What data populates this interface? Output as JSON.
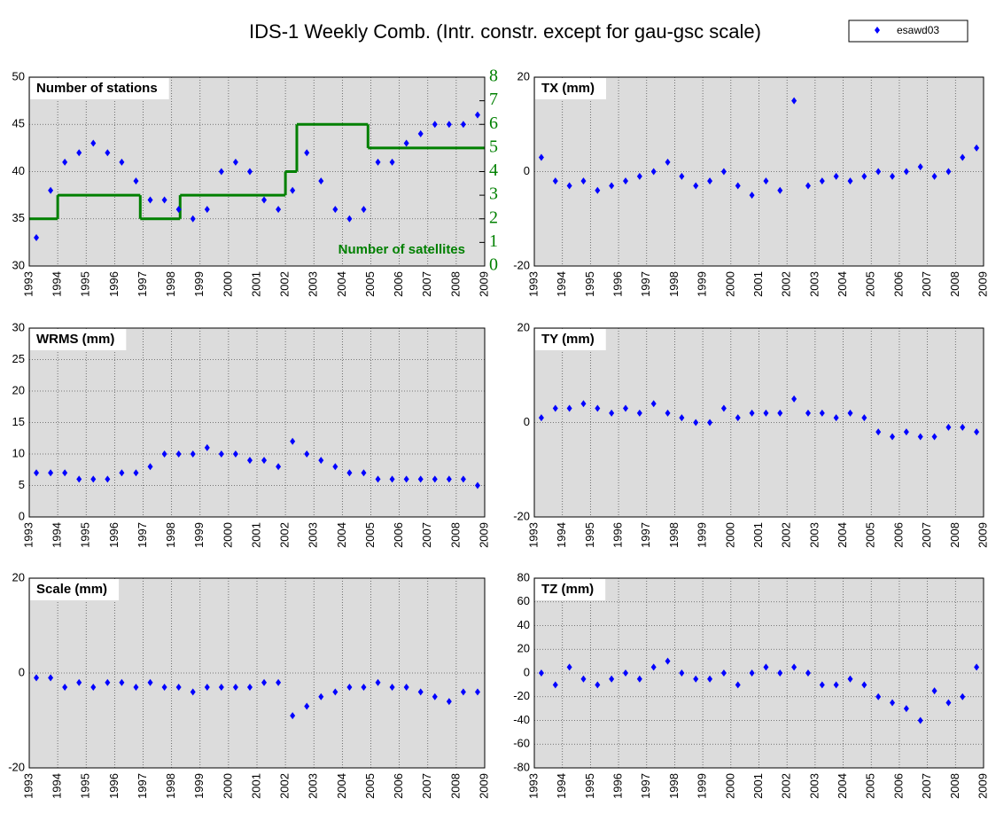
{
  "title": "IDS-1 Weekly Comb. (Intr. constr. except for gau-gsc scale)",
  "chart_data": [
    {
      "type": "scatter",
      "label": "Number of stations",
      "xlim": [
        1993,
        2009
      ],
      "xticks": [
        1993,
        1994,
        1995,
        1996,
        1997,
        1998,
        1999,
        2000,
        2001,
        2002,
        2003,
        2004,
        2005,
        2006,
        2007,
        2008,
        2009
      ],
      "ylim": [
        30,
        50
      ],
      "yticks": [
        30,
        35,
        40,
        45,
        50
      ],
      "y2lim": [
        0,
        8
      ],
      "y2ticks": [
        0,
        1,
        2,
        3,
        4,
        5,
        6,
        7,
        8
      ],
      "grid": true,
      "series": [
        {
          "name": "esawd03",
          "color": "#0000ff",
          "x": [
            1993.25,
            1993.75,
            1994.25,
            1994.75,
            1995.25,
            1995.75,
            1996.25,
            1996.75,
            1997.25,
            1997.75,
            1998.25,
            1998.75,
            1999.25,
            1999.75,
            2000.25,
            2000.75,
            2001.25,
            2001.75,
            2002.25,
            2002.75,
            2003.25,
            2003.75,
            2004.25,
            2004.75,
            2005.25,
            2005.75,
            2006.25,
            2006.75,
            2007.25,
            2007.75,
            2008.25,
            2008.75
          ],
          "values": [
            33,
            38,
            41,
            42,
            43,
            42,
            41,
            39,
            37,
            37,
            36,
            35,
            36,
            40,
            41,
            40,
            37,
            36,
            38,
            42,
            39,
            36,
            35,
            36,
            41,
            41,
            43,
            44,
            45,
            45,
            45,
            46
          ]
        },
        {
          "name": "Number of satellites",
          "color": "#008000",
          "axis": "y2",
          "x": [
            1993,
            1994,
            1996.9,
            1998.3,
            2002,
            2002.4,
            2004.9
          ],
          "values": [
            2,
            3,
            2,
            3,
            4,
            6,
            5
          ]
        }
      ]
    },
    {
      "type": "scatter",
      "label": "TX (mm)",
      "color": "#0000ff",
      "xlim": [
        1993,
        2009
      ],
      "xticks": [
        1993,
        1994,
        1995,
        1996,
        1997,
        1998,
        1999,
        2000,
        2001,
        2002,
        2003,
        2004,
        2005,
        2006,
        2007,
        2008,
        2009
      ],
      "ylim": [
        -20,
        20
      ],
      "yticks": [
        -20,
        0,
        20
      ],
      "grid": true,
      "x": [
        1993.25,
        1993.75,
        1994.25,
        1994.75,
        1995.25,
        1995.75,
        1996.25,
        1996.75,
        1997.25,
        1997.75,
        1998.25,
        1998.75,
        1999.25,
        1999.75,
        2000.25,
        2000.75,
        2001.25,
        2001.75,
        2002.25,
        2002.75,
        2003.25,
        2003.75,
        2004.25,
        2004.75,
        2005.25,
        2005.75,
        2006.25,
        2006.75,
        2007.25,
        2007.75,
        2008.25,
        2008.75
      ],
      "values": [
        3,
        -2,
        -3,
        -2,
        -4,
        -3,
        -2,
        -1,
        0,
        2,
        -1,
        -3,
        -2,
        0,
        -3,
        -5,
        -2,
        -4,
        15,
        -3,
        -2,
        -1,
        -2,
        -1,
        0,
        -1,
        0,
        1,
        -1,
        0,
        3,
        5
      ]
    },
    {
      "type": "scatter",
      "label": "WRMS (mm)",
      "color": "#0000ff",
      "xlim": [
        1993,
        2009
      ],
      "xticks": [
        1993,
        1994,
        1995,
        1996,
        1997,
        1998,
        1999,
        2000,
        2001,
        2002,
        2003,
        2004,
        2005,
        2006,
        2007,
        2008,
        2009
      ],
      "ylim": [
        0,
        30
      ],
      "yticks": [
        0,
        5,
        10,
        15,
        20,
        25,
        30
      ],
      "grid": true,
      "x": [
        1993.25,
        1993.75,
        1994.25,
        1994.75,
        1995.25,
        1995.75,
        1996.25,
        1996.75,
        1997.25,
        1997.75,
        1998.25,
        1998.75,
        1999.25,
        1999.75,
        2000.25,
        2000.75,
        2001.25,
        2001.75,
        2002.25,
        2002.75,
        2003.25,
        2003.75,
        2004.25,
        2004.75,
        2005.25,
        2005.75,
        2006.25,
        2006.75,
        2007.25,
        2007.75,
        2008.25,
        2008.75
      ],
      "values": [
        7,
        7,
        7,
        6,
        6,
        6,
        7,
        7,
        8,
        10,
        10,
        10,
        11,
        10,
        10,
        9,
        9,
        8,
        12,
        10,
        9,
        8,
        7,
        7,
        6,
        6,
        6,
        6,
        6,
        6,
        6,
        5
      ]
    },
    {
      "type": "scatter",
      "label": "TY (mm)",
      "color": "#0000ff",
      "xlim": [
        1993,
        2009
      ],
      "xticks": [
        1993,
        1994,
        1995,
        1996,
        1997,
        1998,
        1999,
        2000,
        2001,
        2002,
        2003,
        2004,
        2005,
        2006,
        2007,
        2008,
        2009
      ],
      "ylim": [
        -20,
        20
      ],
      "yticks": [
        -20,
        0,
        20
      ],
      "grid": true,
      "x": [
        1993.25,
        1993.75,
        1994.25,
        1994.75,
        1995.25,
        1995.75,
        1996.25,
        1996.75,
        1997.25,
        1997.75,
        1998.25,
        1998.75,
        1999.25,
        1999.75,
        2000.25,
        2000.75,
        2001.25,
        2001.75,
        2002.25,
        2002.75,
        2003.25,
        2003.75,
        2004.25,
        2004.75,
        2005.25,
        2005.75,
        2006.25,
        2006.75,
        2007.25,
        2007.75,
        2008.25,
        2008.75
      ],
      "values": [
        1,
        3,
        3,
        4,
        3,
        2,
        3,
        2,
        4,
        2,
        1,
        0,
        0,
        3,
        1,
        2,
        2,
        2,
        5,
        2,
        2,
        1,
        2,
        1,
        -2,
        -3,
        -2,
        -3,
        -3,
        -1,
        -1,
        -2
      ]
    },
    {
      "type": "scatter",
      "label": "Scale (mm)",
      "color": "#0000ff",
      "xlim": [
        1993,
        2009
      ],
      "xticks": [
        1993,
        1994,
        1995,
        1996,
        1997,
        1998,
        1999,
        2000,
        2001,
        2002,
        2003,
        2004,
        2005,
        2006,
        2007,
        2008,
        2009
      ],
      "ylim": [
        -20,
        20
      ],
      "yticks": [
        -20,
        0,
        20
      ],
      "grid": true,
      "x": [
        1993.25,
        1993.75,
        1994.25,
        1994.75,
        1995.25,
        1995.75,
        1996.25,
        1996.75,
        1997.25,
        1997.75,
        1998.25,
        1998.75,
        1999.25,
        1999.75,
        2000.25,
        2000.75,
        2001.25,
        2001.75,
        2002.25,
        2002.75,
        2003.25,
        2003.75,
        2004.25,
        2004.75,
        2005.25,
        2005.75,
        2006.25,
        2006.75,
        2007.25,
        2007.75,
        2008.25,
        2008.75
      ],
      "values": [
        -1,
        -1,
        -3,
        -2,
        -3,
        -2,
        -2,
        -3,
        -2,
        -3,
        -3,
        -4,
        -3,
        -3,
        -3,
        -3,
        -2,
        -2,
        -9,
        -7,
        -5,
        -4,
        -3,
        -3,
        -2,
        -3,
        -3,
        -4,
        -5,
        -6,
        -4,
        -4
      ]
    },
    {
      "type": "scatter",
      "label": "TZ (mm)",
      "color": "#0000ff",
      "xlim": [
        1993,
        2009
      ],
      "xticks": [
        1993,
        1994,
        1995,
        1996,
        1997,
        1998,
        1999,
        2000,
        2001,
        2002,
        2003,
        2004,
        2005,
        2006,
        2007,
        2008,
        2009
      ],
      "ylim": [
        -80,
        80
      ],
      "yticks": [
        -80,
        -60,
        -40,
        -20,
        0,
        20,
        40,
        60,
        80
      ],
      "grid": true,
      "x": [
        1993.25,
        1993.75,
        1994.25,
        1994.75,
        1995.25,
        1995.75,
        1996.25,
        1996.75,
        1997.25,
        1997.75,
        1998.25,
        1998.75,
        1999.25,
        1999.75,
        2000.25,
        2000.75,
        2001.25,
        2001.75,
        2002.25,
        2002.75,
        2003.25,
        2003.75,
        2004.25,
        2004.75,
        2005.25,
        2005.75,
        2006.25,
        2006.75,
        2007.25,
        2007.75,
        2008.25,
        2008.75
      ],
      "values": [
        0,
        -10,
        5,
        -5,
        -10,
        -5,
        0,
        -5,
        5,
        10,
        0,
        -5,
        -5,
        0,
        -10,
        0,
        5,
        0,
        5,
        0,
        -10,
        -10,
        -5,
        -10,
        -20,
        -25,
        -30,
        -40,
        -15,
        -25,
        -20,
        5
      ]
    }
  ]
}
